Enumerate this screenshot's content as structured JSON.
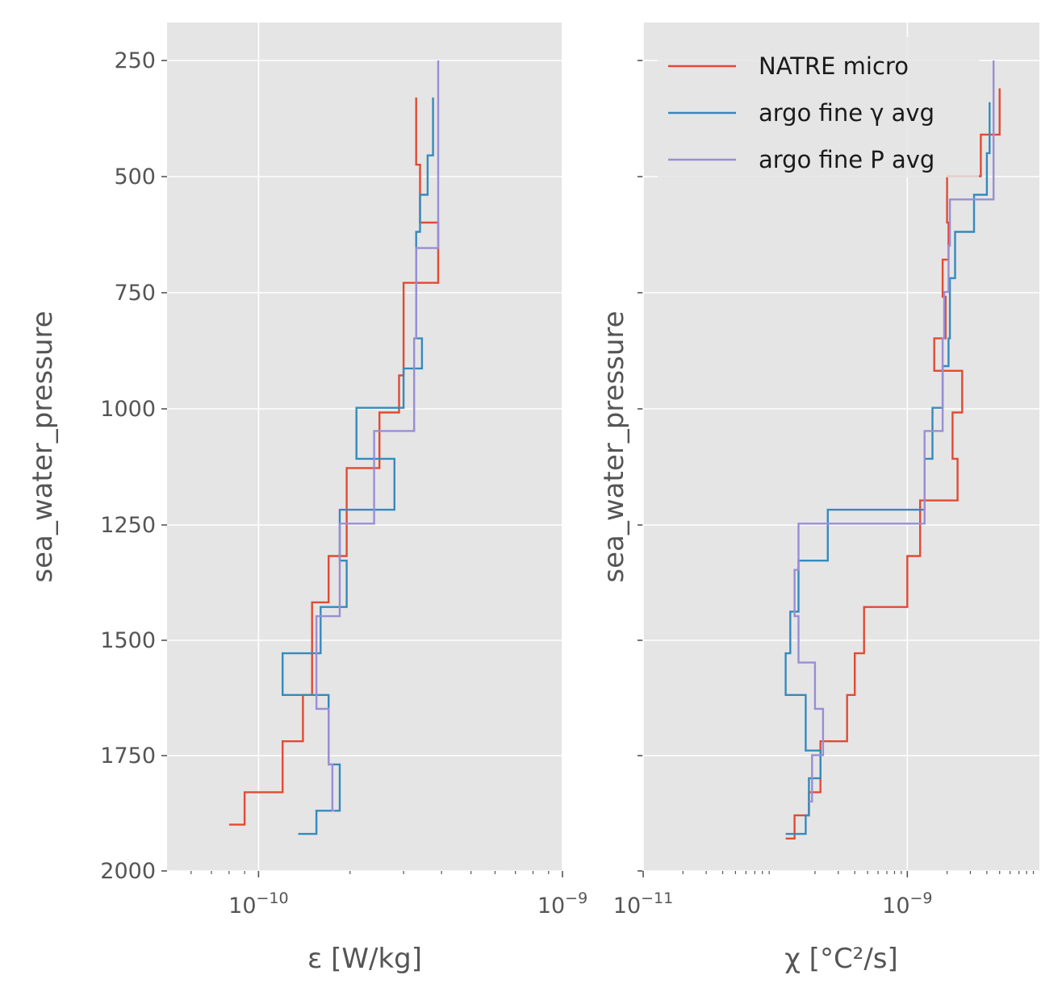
{
  "chart_data": [
    {
      "type": "line",
      "xlabel": "ε [W/kg]",
      "ylabel": "sea_water_pressure",
      "x_scale": "log",
      "xlim": [
        5e-11,
        1e-09
      ],
      "ylim": [
        2000,
        170
      ],
      "y_inverted": true,
      "x_ticks": [
        {
          "value": 1e-10,
          "base": "10",
          "exp": "−10"
        },
        {
          "value": 1e-09,
          "base": "10",
          "exp": "−9"
        }
      ],
      "y_ticks": [
        "250",
        "500",
        "750",
        "1000",
        "1250",
        "1500",
        "1750",
        "2000"
      ],
      "grid": true,
      "series": [
        {
          "name": "NATRE micro",
          "color": "#E24A33",
          "steps": [
            [
              3.3e-10,
              330
            ],
            [
              3.3e-10,
              400
            ],
            [
              3.4e-10,
              475
            ],
            [
              3.9e-10,
              600
            ],
            [
              3e-10,
              730
            ],
            [
              2.9e-10,
              930
            ],
            [
              2.5e-10,
              1010
            ],
            [
              1.95e-10,
              1130
            ],
            [
              1.7e-10,
              1320
            ],
            [
              1.5e-10,
              1420
            ],
            [
              1.4e-10,
              1620
            ],
            [
              1.2e-10,
              1720
            ],
            [
              9e-11,
              1830
            ],
            [
              8e-11,
              1900
            ]
          ]
        },
        {
          "name": "argo fine γ avg",
          "color": "#348ABD",
          "steps": [
            [
              3.75e-10,
              330
            ],
            [
              3.6e-10,
              455
            ],
            [
              3.4e-10,
              540
            ],
            [
              3.3e-10,
              620
            ],
            [
              3.45e-10,
              850
            ],
            [
              3e-10,
              915
            ],
            [
              2.1e-10,
              1000
            ],
            [
              2.8e-10,
              1110
            ],
            [
              1.85e-10,
              1220
            ],
            [
              1.95e-10,
              1330
            ],
            [
              1.6e-10,
              1430
            ],
            [
              1.2e-10,
              1530
            ],
            [
              1.7e-10,
              1620
            ],
            [
              1.85e-10,
              1770
            ],
            [
              1.55e-10,
              1870
            ],
            [
              1.35e-10,
              1920
            ]
          ]
        },
        {
          "name": "argo fine P avg",
          "color": "#988ED5",
          "steps": [
            [
              3.9e-10,
              250
            ],
            [
              3.9e-10,
              450
            ],
            [
              3.3e-10,
              655
            ],
            [
              3.25e-10,
              850
            ],
            [
              2.4e-10,
              1050
            ],
            [
              1.85e-10,
              1250
            ],
            [
              1.55e-10,
              1450
            ],
            [
              1.7e-10,
              1650
            ],
            [
              1.75e-10,
              1770
            ],
            [
              1.78e-10,
              1870
            ]
          ]
        }
      ]
    },
    {
      "type": "line",
      "xlabel": "χ [°C²/s]",
      "ylabel": "sea_water_pressure",
      "x_scale": "log",
      "xlim": [
        1e-11,
        1e-08
      ],
      "ylim": [
        2000,
        170
      ],
      "y_inverted": true,
      "x_ticks": [
        {
          "value": 1e-11,
          "base": "10",
          "exp": "−11"
        },
        {
          "value": 1e-09,
          "base": "10",
          "exp": "−9"
        }
      ],
      "grid": true,
      "legend_position": "top-right",
      "series": [
        {
          "name": "NATRE micro",
          "color": "#E24A33",
          "steps": [
            [
              5e-09,
              310
            ],
            [
              5e-09,
              410
            ],
            [
              3.6e-09,
              410
            ],
            [
              2e-09,
              500
            ],
            [
              2.05e-09,
              600
            ],
            [
              1.85e-09,
              680
            ],
            [
              1.95e-09,
              760
            ],
            [
              1.6e-09,
              850
            ],
            [
              2.6e-09,
              920
            ],
            [
              2.2e-09,
              1010
            ],
            [
              2.4e-09,
              1110
            ],
            [
              1.25e-09,
              1200
            ],
            [
              1e-09,
              1320
            ],
            [
              4.7e-10,
              1430
            ],
            [
              4e-10,
              1530
            ],
            [
              3.5e-10,
              1620
            ],
            [
              2.2e-10,
              1720
            ],
            [
              1.8e-10,
              1830
            ],
            [
              1.4e-10,
              1880
            ],
            [
              1.2e-10,
              1930
            ]
          ]
        },
        {
          "name": "argo fine γ avg",
          "color": "#348ABD",
          "steps": [
            [
              4.2e-09,
              340
            ],
            [
              4e-09,
              450
            ],
            [
              3.2e-09,
              540
            ],
            [
              2.3e-09,
              620
            ],
            [
              2.1e-09,
              720
            ],
            [
              2.05e-09,
              850
            ],
            [
              1.85e-09,
              910
            ],
            [
              1.55e-09,
              1000
            ],
            [
              1.35e-09,
              1110
            ],
            [
              2.5e-10,
              1220
            ],
            [
              1.5e-10,
              1330
            ],
            [
              1.3e-10,
              1440
            ],
            [
              1.2e-10,
              1530
            ],
            [
              1.7e-10,
              1620
            ],
            [
              2.2e-10,
              1740
            ],
            [
              1.8e-10,
              1800
            ],
            [
              1.7e-10,
              1880
            ],
            [
              1.2e-10,
              1920
            ]
          ]
        },
        {
          "name": "argo fine P avg",
          "color": "#988ED5",
          "steps": [
            [
              4.5e-09,
              250
            ],
            [
              4.5e-09,
              450
            ],
            [
              2.1e-09,
              550
            ],
            [
              2.05e-09,
              650
            ],
            [
              1.9e-09,
              750
            ],
            [
              1.85e-09,
              850
            ],
            [
              1.35e-09,
              1050
            ],
            [
              1.5e-10,
              1250
            ],
            [
              1.4e-10,
              1350
            ],
            [
              1.5e-10,
              1450
            ],
            [
              2e-10,
              1550
            ],
            [
              2.3e-10,
              1650
            ],
            [
              1.9e-10,
              1750
            ],
            [
              1.8e-10,
              1850
            ]
          ]
        }
      ]
    }
  ]
}
